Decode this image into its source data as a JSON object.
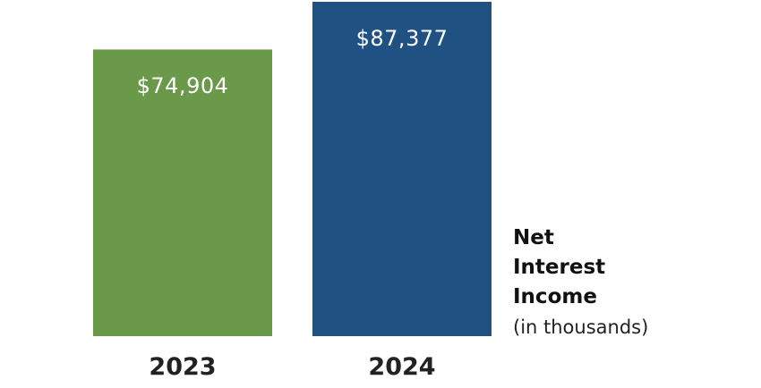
{
  "chart_data": {
    "type": "bar",
    "categories": [
      "2023",
      "2024"
    ],
    "values": [
      74904,
      87377
    ],
    "value_labels": [
      "$74,904",
      "$87,377"
    ],
    "colors": [
      "#6a994a",
      "#1f5283"
    ],
    "metric": {
      "lines": [
        "Net",
        "Interest",
        "Income"
      ],
      "unit": "(in thousands)"
    },
    "ylim": [
      0,
      87377
    ],
    "grid": false
  }
}
